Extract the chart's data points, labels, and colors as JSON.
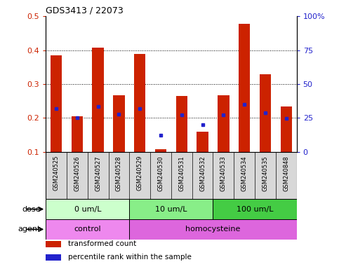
{
  "title": "GDS3413 / 22073",
  "samples": [
    "GSM240525",
    "GSM240526",
    "GSM240527",
    "GSM240528",
    "GSM240529",
    "GSM240530",
    "GSM240531",
    "GSM240532",
    "GSM240533",
    "GSM240534",
    "GSM240535",
    "GSM240848"
  ],
  "transformed_count": [
    0.385,
    0.205,
    0.408,
    0.268,
    0.388,
    0.108,
    0.265,
    0.16,
    0.268,
    0.478,
    0.328,
    0.235
  ],
  "percentile_rank": [
    0.228,
    0.202,
    0.233,
    0.212,
    0.228,
    0.15,
    0.21,
    0.18,
    0.21,
    0.24,
    0.215,
    0.198
  ],
  "bar_bottom": 0.1,
  "ylim": [
    0.1,
    0.5
  ],
  "yticks": [
    0.1,
    0.2,
    0.3,
    0.4,
    0.5
  ],
  "ytick_labels": [
    "0.1",
    "0.2",
    "0.3",
    "0.4",
    "0.5"
  ],
  "right_yticks": [
    0,
    25,
    50,
    75,
    100
  ],
  "right_ytick_labels": [
    "0",
    "25",
    "50",
    "75",
    "100%"
  ],
  "bar_color": "#cc2200",
  "dot_color": "#2222cc",
  "dose_groups": [
    {
      "label": "0 um/L",
      "start": 0,
      "end": 4,
      "color": "#ccffcc"
    },
    {
      "label": "10 um/L",
      "start": 4,
      "end": 8,
      "color": "#88ee88"
    },
    {
      "label": "100 um/L",
      "start": 8,
      "end": 12,
      "color": "#44cc44"
    }
  ],
  "agent_groups": [
    {
      "label": "control",
      "start": 0,
      "end": 4,
      "color": "#ee88ee"
    },
    {
      "label": "homocysteine",
      "start": 4,
      "end": 12,
      "color": "#dd66dd"
    }
  ],
  "dose_label": "dose",
  "agent_label": "agent",
  "legend_items": [
    {
      "label": "transformed count",
      "color": "#cc2200"
    },
    {
      "label": "percentile rank within the sample",
      "color": "#2222cc"
    }
  ],
  "grid_color": "#000000",
  "axis_label_color_left": "#cc2200",
  "axis_label_color_right": "#2222cc",
  "xtick_bg_color": "#d8d8d8",
  "grid_lines": [
    0.2,
    0.3,
    0.4
  ]
}
